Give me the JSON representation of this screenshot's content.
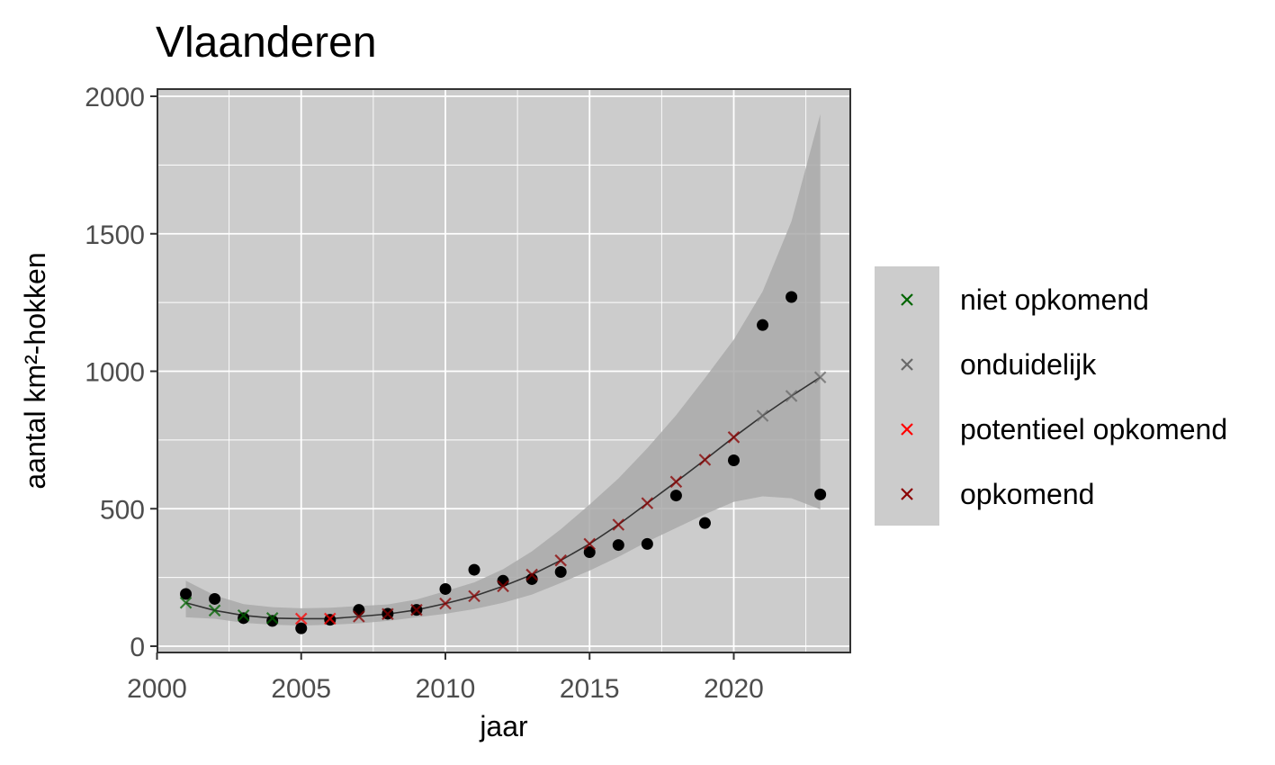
{
  "chart_data": {
    "type": "scatter",
    "title": "Vlaanderen",
    "xlabel": "jaar",
    "ylabel": "aantal km²-hokken",
    "xlim": [
      2000,
      2024
    ],
    "ylim": [
      0,
      2000
    ],
    "x_ticks": [
      2000,
      2005,
      2010,
      2015,
      2020
    ],
    "y_ticks": [
      0,
      500,
      1000,
      1500,
      2000
    ],
    "grid": true,
    "legend_position": "right",
    "colors": {
      "panel": "#cccccc",
      "grid": "#ffffff",
      "band": "#a9a9a9",
      "fit_line": "#333333",
      "observed": "#000000"
    },
    "observed": {
      "x": [
        2001,
        2002,
        2003,
        2004,
        2005,
        2006,
        2007,
        2008,
        2009,
        2010,
        2011,
        2012,
        2013,
        2014,
        2015,
        2016,
        2017,
        2018,
        2019,
        2020,
        2021,
        2022,
        2023
      ],
      "y": [
        190,
        172,
        102,
        92,
        65,
        96,
        132,
        118,
        132,
        208,
        278,
        238,
        244,
        270,
        342,
        368,
        372,
        548,
        448,
        676,
        1168,
        1270,
        552
      ]
    },
    "fit": {
      "x": [
        2001,
        2002,
        2003,
        2004,
        2005,
        2006,
        2007,
        2008,
        2009,
        2010,
        2011,
        2012,
        2013,
        2014,
        2015,
        2016,
        2017,
        2018,
        2019,
        2020,
        2021,
        2022,
        2023
      ],
      "y": [
        158,
        130,
        112,
        102,
        100,
        100,
        108,
        117,
        132,
        155,
        182,
        218,
        260,
        312,
        372,
        442,
        520,
        598,
        678,
        760,
        838,
        910,
        978
      ],
      "lower": [
        105,
        100,
        85,
        78,
        75,
        78,
        83,
        92,
        105,
        118,
        135,
        158,
        188,
        230,
        275,
        325,
        380,
        430,
        480,
        525,
        545,
        538,
        498
      ],
      "upper": [
        238,
        185,
        153,
        142,
        138,
        140,
        146,
        152,
        170,
        200,
        232,
        280,
        345,
        425,
        515,
        610,
        720,
        840,
        975,
        1115,
        1290,
        1545,
        1935
      ],
      "category": [
        "niet opkomend",
        "niet opkomend",
        "niet opkomend",
        "niet opkomend",
        "potentieel opkomend",
        "potentieel opkomend",
        "opkomend",
        "opkomend",
        "opkomend",
        "opkomend",
        "opkomend",
        "opkomend",
        "opkomend",
        "opkomend",
        "opkomend",
        "opkomend",
        "opkomend",
        "opkomend",
        "opkomend",
        "opkomend",
        "onduidelijk",
        "onduidelijk",
        "onduidelijk"
      ]
    },
    "legend": [
      {
        "name": "niet opkomend",
        "color": "#006400"
      },
      {
        "name": "onduidelijk",
        "color": "#696969"
      },
      {
        "name": "potentieel opkomend",
        "color": "#ff0000"
      },
      {
        "name": "opkomend",
        "color": "#8b0000"
      }
    ]
  }
}
